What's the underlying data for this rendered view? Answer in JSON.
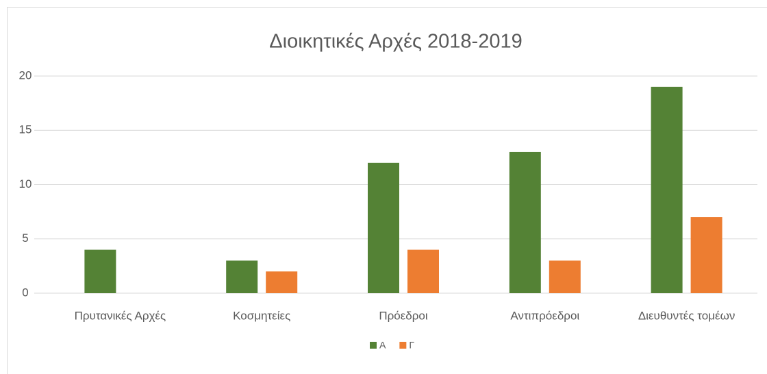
{
  "chart_data": {
    "type": "bar",
    "title": "Διοικητικές Αρχές 2018-2019",
    "categories": [
      "Πρυτανικές Αρχές",
      "Κοσμητείες",
      "Πρόεδροι",
      "Αντιπρόεδροι",
      "Διευθυντές τομέων"
    ],
    "series": [
      {
        "name": "Α",
        "color": "#548235",
        "values": [
          4,
          3,
          12,
          13,
          19
        ]
      },
      {
        "name": "Γ",
        "color": "#ed7d31",
        "values": [
          0,
          2,
          4,
          3,
          7
        ]
      }
    ],
    "ylim": [
      0,
      20
    ],
    "yticks": [
      0,
      5,
      10,
      15,
      20
    ],
    "grid": true,
    "legend": "bottom"
  }
}
